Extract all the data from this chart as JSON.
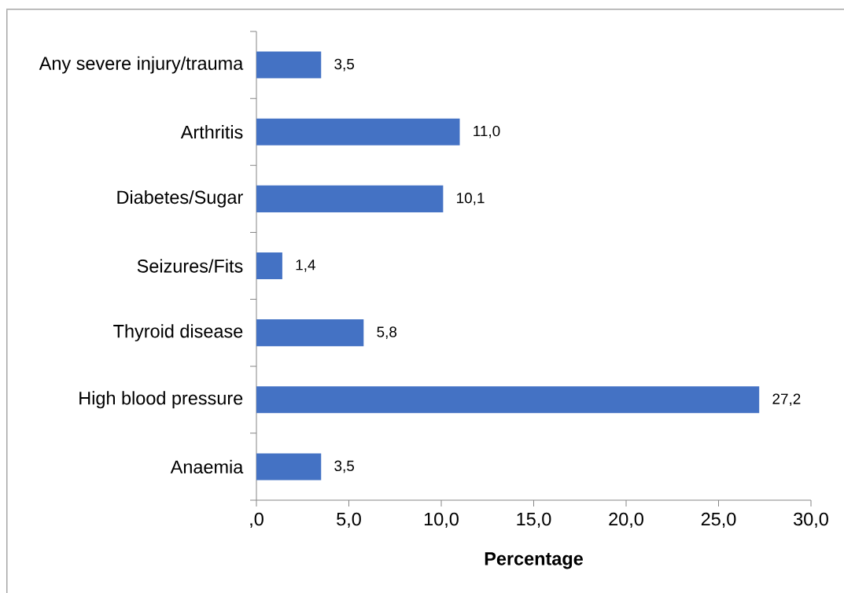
{
  "chart_data": {
    "type": "bar",
    "orientation": "horizontal",
    "xlabel": "Percentage",
    "categories": [
      "Any severe injury/trauma",
      "Arthritis",
      "Diabetes/Sugar",
      "Seizures/Fits",
      "Thyroid disease",
      "High blood pressure",
      "Anaemia"
    ],
    "values": [
      3.5,
      11.0,
      10.1,
      1.4,
      5.8,
      27.2,
      3.5
    ],
    "value_labels": [
      "3,5",
      "11,0",
      "10,1",
      "1,4",
      "5,8",
      "27,2",
      "3,5"
    ],
    "color": "#4472c4",
    "xlim": [
      0,
      30
    ],
    "xticks": [
      {
        "value": 0,
        "label": ",0"
      },
      {
        "value": 5,
        "label": "5,0"
      },
      {
        "value": 10,
        "label": "10,0"
      },
      {
        "value": 15,
        "label": "15,0"
      },
      {
        "value": 20,
        "label": "20,0"
      },
      {
        "value": 25,
        "label": "25,0"
      },
      {
        "value": 30,
        "label": "30,0"
      }
    ]
  }
}
